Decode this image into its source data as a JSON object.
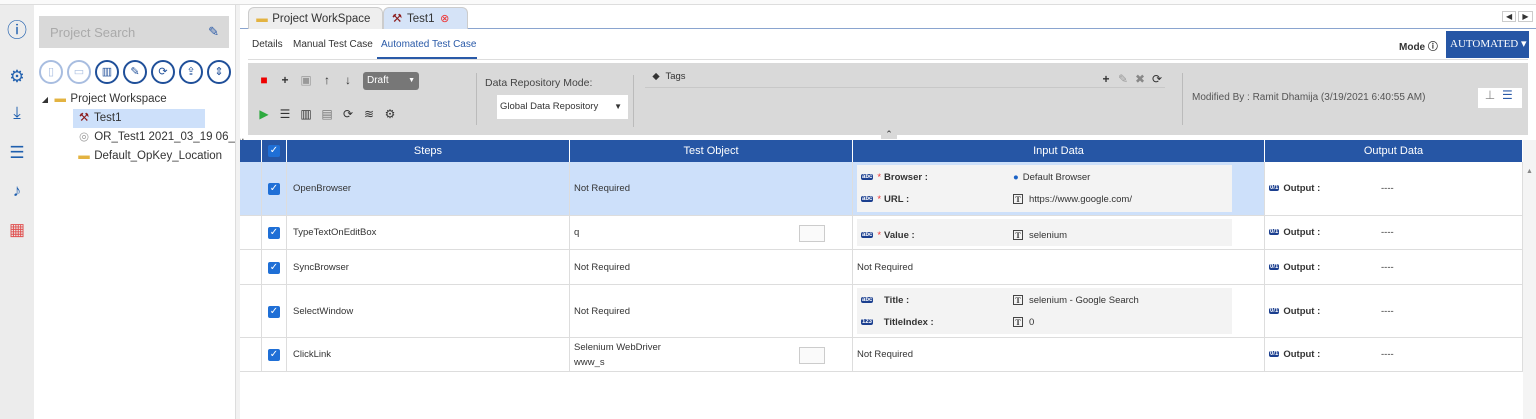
{
  "sidebar": {
    "icons": [
      "info-gear-icon",
      "gears-icon",
      "download-icon",
      "list-icon",
      "bell-icon",
      "apps-grid-icon"
    ]
  },
  "tree": {
    "search_placeholder": "Project Search",
    "toolbar": [
      "new-file-icon",
      "open-folder-icon",
      "delete-icon",
      "edit-icon",
      "refresh-icon",
      "upload-icon",
      "sort-icon"
    ],
    "root": "Project Workspace",
    "children": [
      {
        "label": "Test1",
        "icon": "wrench-icon",
        "selected": true
      },
      {
        "label": "OR_Test1 2021_03_19 06_...",
        "icon": "gear-disc-icon"
      },
      {
        "label": "Default_OpKey_Location",
        "icon": "folder-icon"
      }
    ]
  },
  "tabs": [
    {
      "label": "Project WorkSpace",
      "icon": "folder-icon"
    },
    {
      "label": "Test1",
      "icon": "wrench-icon",
      "active": true
    }
  ],
  "subtabs": [
    "Details",
    "Manual Test Case",
    "Automated Test Case"
  ],
  "active_subtab": "Automated Test Case",
  "mode": {
    "label": "Mode",
    "value": "AUTOMATED"
  },
  "toolbar": {
    "status": "Draft",
    "repo_label": "Data Repository Mode:",
    "repo_value": "Global Data Repository",
    "tags_label": "Tags",
    "modified": "Modified By : Ramit Dhamija (3/19/2021 6:40:55 AM)"
  },
  "grid": {
    "headers": [
      "Steps",
      "Test Object",
      "Input Data",
      "Output Data"
    ],
    "rows": [
      {
        "step": "OpenBrowser",
        "object": "Not Required",
        "inputs": [
          {
            "type": "abc",
            "req": true,
            "name": "Browser :",
            "value": "Default Browser",
            "vicon": "globe"
          },
          {
            "type": "abc",
            "req": true,
            "name": "URL :",
            "value": "https://www.google.com/",
            "vicon": "T"
          }
        ],
        "output": "Output :",
        "out_value": "----",
        "selected": true
      },
      {
        "step": "TypeTextOnEditBox",
        "object": "q",
        "inputs": [
          {
            "type": "abc",
            "req": true,
            "name": "Value :",
            "value": "selenium",
            "vicon": "T"
          }
        ],
        "output": "Output :",
        "out_value": "----"
      },
      {
        "step": "SyncBrowser",
        "object": "Not Required",
        "input_text": "Not Required",
        "output": "Output :",
        "out_value": "----"
      },
      {
        "step": "SelectWindow",
        "object": "Not Required",
        "inputs": [
          {
            "type": "abc",
            "req": false,
            "name": "Title :",
            "value": "selenium - Google Search",
            "vicon": "T"
          },
          {
            "type": "123",
            "req": false,
            "name": "TitleIndex :",
            "value": "0",
            "vicon": "T"
          }
        ],
        "output": "Output :",
        "out_value": "----"
      },
      {
        "step": "ClickLink",
        "object": "Selenium WebDriver",
        "object2": "www_s",
        "input_text": "Not Required",
        "output": "Output :",
        "out_value": "----"
      }
    ]
  },
  "colors": {
    "accent": "#2656a5",
    "selected_row": "#cde0fa"
  }
}
